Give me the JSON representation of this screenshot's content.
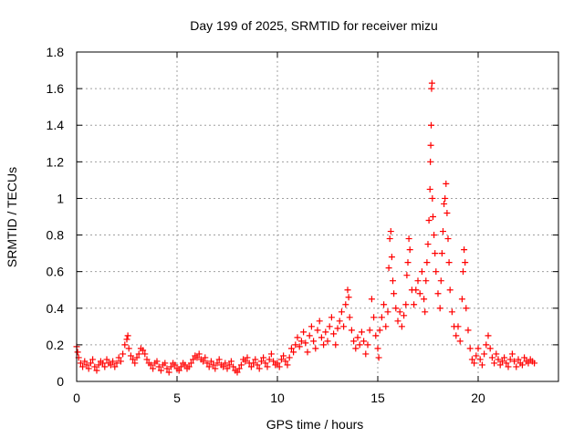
{
  "chart_data": {
    "type": "scatter",
    "title": "Day 199 of 2025, SRMTID for receiver mizu",
    "xlabel": "GPS time / hours",
    "ylabel": "SRMTID / TECUs",
    "xlim": [
      0,
      24
    ],
    "ylim": [
      0,
      1.8
    ],
    "xticks": [
      0,
      5,
      10,
      15,
      20
    ],
    "xtick_labels": [
      "0",
      "5",
      "10",
      "15",
      "20"
    ],
    "yticks": [
      0,
      0.2,
      0.4,
      0.6,
      0.8,
      1.0,
      1.2,
      1.4,
      1.6,
      1.8
    ],
    "ytick_labels": [
      "0",
      "0.2",
      "0.4",
      "0.6",
      "0.8",
      "1",
      "1.2",
      "1.4",
      "1.6",
      "1.8"
    ],
    "grid": true,
    "marker": "+",
    "color": "#ff0000",
    "series": [
      {
        "name": "SRMTID",
        "points": [
          [
            0.0,
            0.19
          ],
          [
            0.05,
            0.16
          ],
          [
            0.1,
            0.13
          ],
          [
            0.2,
            0.1
          ],
          [
            0.3,
            0.08
          ],
          [
            0.4,
            0.11
          ],
          [
            0.5,
            0.09
          ],
          [
            0.6,
            0.07
          ],
          [
            0.7,
            0.1
          ],
          [
            0.8,
            0.12
          ],
          [
            0.9,
            0.08
          ],
          [
            1.0,
            0.06
          ],
          [
            1.1,
            0.09
          ],
          [
            1.2,
            0.11
          ],
          [
            1.3,
            0.1
          ],
          [
            1.4,
            0.08
          ],
          [
            1.5,
            0.12
          ],
          [
            1.6,
            0.1
          ],
          [
            1.7,
            0.09
          ],
          [
            1.8,
            0.11
          ],
          [
            1.9,
            0.08
          ],
          [
            2.0,
            0.1
          ],
          [
            2.1,
            0.13
          ],
          [
            2.2,
            0.11
          ],
          [
            2.3,
            0.15
          ],
          [
            2.4,
            0.2
          ],
          [
            2.5,
            0.23
          ],
          [
            2.55,
            0.25
          ],
          [
            2.6,
            0.18
          ],
          [
            2.7,
            0.14
          ],
          [
            2.8,
            0.12
          ],
          [
            2.9,
            0.1
          ],
          [
            3.0,
            0.13
          ],
          [
            3.1,
            0.15
          ],
          [
            3.2,
            0.18
          ],
          [
            3.3,
            0.17
          ],
          [
            3.4,
            0.15
          ],
          [
            3.5,
            0.12
          ],
          [
            3.6,
            0.1
          ],
          [
            3.7,
            0.09
          ],
          [
            3.8,
            0.07
          ],
          [
            3.9,
            0.1
          ],
          [
            4.0,
            0.11
          ],
          [
            4.1,
            0.08
          ],
          [
            4.2,
            0.06
          ],
          [
            4.3,
            0.09
          ],
          [
            4.4,
            0.1
          ],
          [
            4.5,
            0.07
          ],
          [
            4.6,
            0.05
          ],
          [
            4.7,
            0.08
          ],
          [
            4.8,
            0.1
          ],
          [
            4.9,
            0.09
          ],
          [
            5.0,
            0.07
          ],
          [
            5.1,
            0.06
          ],
          [
            5.2,
            0.08
          ],
          [
            5.3,
            0.1
          ],
          [
            5.4,
            0.09
          ],
          [
            5.5,
            0.07
          ],
          [
            5.6,
            0.08
          ],
          [
            5.7,
            0.1
          ],
          [
            5.8,
            0.12
          ],
          [
            5.9,
            0.14
          ],
          [
            6.0,
            0.13
          ],
          [
            6.1,
            0.15
          ],
          [
            6.2,
            0.12
          ],
          [
            6.3,
            0.11
          ],
          [
            6.4,
            0.13
          ],
          [
            6.5,
            0.1
          ],
          [
            6.6,
            0.08
          ],
          [
            6.7,
            0.11
          ],
          [
            6.8,
            0.09
          ],
          [
            6.9,
            0.07
          ],
          [
            7.0,
            0.1
          ],
          [
            7.1,
            0.12
          ],
          [
            7.2,
            0.09
          ],
          [
            7.3,
            0.08
          ],
          [
            7.4,
            0.1
          ],
          [
            7.5,
            0.07
          ],
          [
            7.6,
            0.09
          ],
          [
            7.7,
            0.11
          ],
          [
            7.8,
            0.08
          ],
          [
            7.9,
            0.06
          ],
          [
            8.0,
            0.05
          ],
          [
            8.1,
            0.07
          ],
          [
            8.2,
            0.09
          ],
          [
            8.3,
            0.12
          ],
          [
            8.4,
            0.11
          ],
          [
            8.5,
            0.13
          ],
          [
            8.6,
            0.1
          ],
          [
            8.7,
            0.08
          ],
          [
            8.8,
            0.1
          ],
          [
            8.9,
            0.12
          ],
          [
            9.0,
            0.09
          ],
          [
            9.1,
            0.07
          ],
          [
            9.2,
            0.11
          ],
          [
            9.3,
            0.13
          ],
          [
            9.4,
            0.1
          ],
          [
            9.5,
            0.08
          ],
          [
            9.6,
            0.12
          ],
          [
            9.7,
            0.15
          ],
          [
            9.8,
            0.11
          ],
          [
            9.9,
            0.09
          ],
          [
            10.0,
            0.1
          ],
          [
            10.1,
            0.08
          ],
          [
            10.2,
            0.12
          ],
          [
            10.3,
            0.14
          ],
          [
            10.4,
            0.11
          ],
          [
            10.5,
            0.09
          ],
          [
            10.6,
            0.13
          ],
          [
            10.7,
            0.18
          ],
          [
            10.8,
            0.16
          ],
          [
            10.9,
            0.2
          ],
          [
            11.0,
            0.24
          ],
          [
            11.1,
            0.19
          ],
          [
            11.2,
            0.22
          ],
          [
            11.3,
            0.27
          ],
          [
            11.4,
            0.21
          ],
          [
            11.5,
            0.16
          ],
          [
            11.6,
            0.25
          ],
          [
            11.7,
            0.3
          ],
          [
            11.8,
            0.22
          ],
          [
            11.9,
            0.18
          ],
          [
            12.0,
            0.28
          ],
          [
            12.1,
            0.33
          ],
          [
            12.2,
            0.24
          ],
          [
            12.3,
            0.2
          ],
          [
            12.4,
            0.27
          ],
          [
            12.5,
            0.22
          ],
          [
            12.6,
            0.3
          ],
          [
            12.7,
            0.35
          ],
          [
            12.8,
            0.26
          ],
          [
            12.9,
            0.2
          ],
          [
            13.0,
            0.29
          ],
          [
            13.1,
            0.33
          ],
          [
            13.2,
            0.38
          ],
          [
            13.3,
            0.3
          ],
          [
            13.4,
            0.42
          ],
          [
            13.5,
            0.5
          ],
          [
            13.55,
            0.46
          ],
          [
            13.6,
            0.35
          ],
          [
            13.7,
            0.28
          ],
          [
            13.8,
            0.22
          ],
          [
            13.9,
            0.18
          ],
          [
            14.0,
            0.24
          ],
          [
            14.1,
            0.2
          ],
          [
            14.2,
            0.27
          ],
          [
            14.3,
            0.22
          ],
          [
            14.4,
            0.15
          ],
          [
            14.5,
            0.2
          ],
          [
            14.6,
            0.28
          ],
          [
            14.7,
            0.45
          ],
          [
            14.8,
            0.35
          ],
          [
            14.9,
            0.25
          ],
          [
            15.0,
            0.18
          ],
          [
            15.05,
            0.13
          ],
          [
            15.1,
            0.28
          ],
          [
            15.2,
            0.35
          ],
          [
            15.3,
            0.42
          ],
          [
            15.4,
            0.3
          ],
          [
            15.5,
            0.38
          ],
          [
            15.55,
            0.62
          ],
          [
            15.6,
            0.78
          ],
          [
            15.65,
            0.82
          ],
          [
            15.7,
            0.68
          ],
          [
            15.75,
            0.55
          ],
          [
            15.8,
            0.48
          ],
          [
            15.9,
            0.4
          ],
          [
            16.0,
            0.33
          ],
          [
            16.1,
            0.38
          ],
          [
            16.2,
            0.3
          ],
          [
            16.3,
            0.36
          ],
          [
            16.4,
            0.42
          ],
          [
            16.45,
            0.58
          ],
          [
            16.5,
            0.65
          ],
          [
            16.55,
            0.78
          ],
          [
            16.6,
            0.72
          ],
          [
            16.7,
            0.5
          ],
          [
            16.8,
            0.42
          ],
          [
            16.9,
            0.5
          ],
          [
            17.0,
            0.55
          ],
          [
            17.1,
            0.48
          ],
          [
            17.2,
            0.6
          ],
          [
            17.3,
            0.45
          ],
          [
            17.35,
            0.38
          ],
          [
            17.4,
            0.55
          ],
          [
            17.45,
            0.65
          ],
          [
            17.5,
            0.75
          ],
          [
            17.55,
            0.88
          ],
          [
            17.6,
            1.05
          ],
          [
            17.62,
            1.2
          ],
          [
            17.64,
            1.29
          ],
          [
            17.66,
            1.4
          ],
          [
            17.68,
            1.6
          ],
          [
            17.7,
            1.63
          ],
          [
            17.72,
            1.0
          ],
          [
            17.75,
            0.9
          ],
          [
            17.8,
            0.8
          ],
          [
            17.85,
            0.7
          ],
          [
            17.9,
            0.6
          ],
          [
            18.0,
            0.48
          ],
          [
            18.1,
            0.4
          ],
          [
            18.15,
            0.55
          ],
          [
            18.2,
            0.7
          ],
          [
            18.25,
            0.82
          ],
          [
            18.3,
            0.97
          ],
          [
            18.35,
            1.0
          ],
          [
            18.4,
            1.08
          ],
          [
            18.45,
            0.92
          ],
          [
            18.5,
            0.78
          ],
          [
            18.55,
            0.65
          ],
          [
            18.6,
            0.5
          ],
          [
            18.7,
            0.38
          ],
          [
            18.8,
            0.3
          ],
          [
            18.9,
            0.25
          ],
          [
            19.0,
            0.3
          ],
          [
            19.1,
            0.22
          ],
          [
            19.2,
            0.45
          ],
          [
            19.25,
            0.6
          ],
          [
            19.3,
            0.72
          ],
          [
            19.35,
            0.65
          ],
          [
            19.4,
            0.4
          ],
          [
            19.5,
            0.28
          ],
          [
            19.6,
            0.18
          ],
          [
            19.7,
            0.12
          ],
          [
            19.8,
            0.1
          ],
          [
            19.9,
            0.14
          ],
          [
            20.0,
            0.18
          ],
          [
            20.1,
            0.12
          ],
          [
            20.2,
            0.09
          ],
          [
            20.3,
            0.15
          ],
          [
            20.4,
            0.2
          ],
          [
            20.5,
            0.25
          ],
          [
            20.6,
            0.18
          ],
          [
            20.7,
            0.13
          ],
          [
            20.8,
            0.1
          ],
          [
            20.9,
            0.15
          ],
          [
            21.0,
            0.12
          ],
          [
            21.1,
            0.09
          ],
          [
            21.2,
            0.11
          ],
          [
            21.3,
            0.13
          ],
          [
            21.4,
            0.1
          ],
          [
            21.5,
            0.08
          ],
          [
            21.6,
            0.12
          ],
          [
            21.7,
            0.15
          ],
          [
            21.8,
            0.11
          ],
          [
            21.9,
            0.08
          ],
          [
            22.0,
            0.12
          ],
          [
            22.1,
            0.1
          ],
          [
            22.2,
            0.09
          ],
          [
            22.3,
            0.13
          ],
          [
            22.4,
            0.11
          ],
          [
            22.5,
            0.1
          ],
          [
            22.6,
            0.12
          ],
          [
            22.7,
            0.11
          ],
          [
            22.8,
            0.1
          ]
        ]
      }
    ]
  }
}
